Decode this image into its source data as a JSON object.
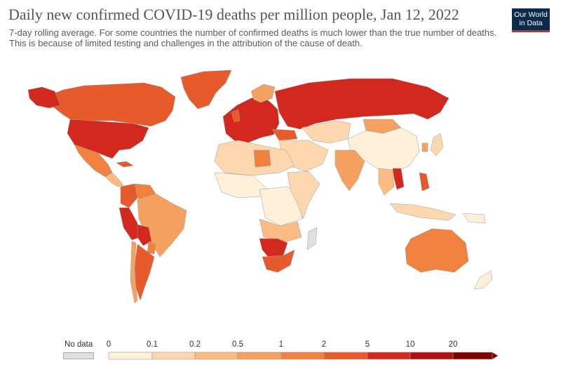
{
  "title": "Daily new confirmed COVID-19 deaths per million people, Jan 12, 2022",
  "subtitle": "7-day rolling average. For some countries the number of confirmed deaths is much lower than the true number of deaths. This is because of limited testing and challenges in the attribution of the cause of death.",
  "logo": {
    "line1": "Our World",
    "line2": "in Data"
  },
  "legend": {
    "no_data_label": "No data",
    "no_data_color": "#e0e0e0",
    "bins": [
      "0",
      "0.1",
      "0.2",
      "0.5",
      "1",
      "2",
      "5",
      "10",
      "20"
    ],
    "colors": [
      "#fef0d9",
      "#fdd8ae",
      "#fdbb84",
      "#f5a15f",
      "#f0813f",
      "#e65a2c",
      "#d3281d",
      "#b0100f",
      "#7f0000"
    ]
  },
  "map_colors": {
    "ocean": "#ffffff",
    "no_data": "#e0e0e0",
    "stroke": "#9c9c9c"
  }
}
